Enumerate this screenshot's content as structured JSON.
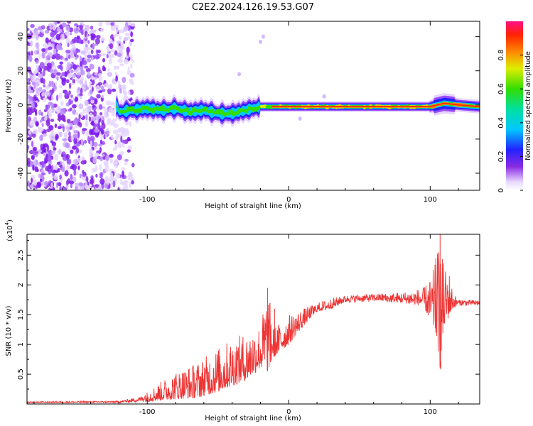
{
  "title": "C2E2.2024.126.19.53.G07",
  "chart_data": [
    {
      "type": "heatmap",
      "panel": "top",
      "xlabel": "Height of straight line (km)",
      "ylabel": "Frequency (Hz)",
      "xlim": [
        -185,
        135
      ],
      "ylim": [
        -50,
        49
      ],
      "xticks": [
        -100,
        0,
        100
      ],
      "yticks": [
        -40,
        -20,
        0,
        20,
        40
      ],
      "colorbar": {
        "label": "Normalized spectral amplitude",
        "range": [
          0,
          1
        ],
        "ticks": [
          0.0,
          0.2,
          0.4,
          0.6,
          0.8
        ]
      },
      "ridge": [
        [
          -120,
          -4
        ],
        [
          -110,
          -3
        ],
        [
          -100,
          -2
        ],
        [
          -90,
          -3
        ],
        [
          -80,
          -2
        ],
        [
          -70,
          -4
        ],
        [
          -60,
          -3
        ],
        [
          -50,
          -5
        ],
        [
          -40,
          -5
        ],
        [
          -30,
          -3
        ],
        [
          -20,
          -1
        ],
        [
          -10,
          -1
        ],
        [
          0,
          -1
        ],
        [
          20,
          -1
        ],
        [
          40,
          -1
        ],
        [
          60,
          -1
        ],
        [
          80,
          -1
        ],
        [
          100,
          -1
        ],
        [
          105,
          0
        ],
        [
          110,
          1
        ],
        [
          120,
          0
        ],
        [
          135,
          -1
        ]
      ]
    },
    {
      "type": "line",
      "panel": "bottom",
      "xlabel": "Height of straight line (km)",
      "ylabel": "SNR (10 * v/v)",
      "scale_label": "(x10",
      "scale_exp": "4",
      "scale_close": ")",
      "xlim": [
        -185,
        135
      ],
      "ylim": [
        0,
        2.85
      ],
      "xticks": [
        -100,
        0,
        100
      ],
      "yticks": [
        0.5,
        1.0,
        1.5,
        2.0,
        2.5
      ],
      "color": "#ee3333",
      "series": [
        {
          "envelope": [
            [
              -185,
              0.02,
              0.04
            ],
            [
              -120,
              0.02,
              0.05
            ],
            [
              -105,
              0.03,
              0.12
            ],
            [
              -95,
              0.05,
              0.3
            ],
            [
              -80,
              0.08,
              0.55
            ],
            [
              -65,
              0.1,
              0.7
            ],
            [
              -50,
              0.2,
              0.95
            ],
            [
              -40,
              0.3,
              1.1
            ],
            [
              -30,
              0.4,
              1.2
            ],
            [
              -20,
              0.6,
              1.35
            ],
            [
              -15,
              0.55,
              1.95
            ],
            [
              -10,
              0.8,
              1.3
            ],
            [
              -5,
              0.9,
              1.4
            ],
            [
              0,
              1.0,
              1.5
            ],
            [
              10,
              1.3,
              1.6
            ],
            [
              20,
              1.55,
              1.7
            ],
            [
              30,
              1.6,
              1.78
            ],
            [
              40,
              1.7,
              1.82
            ],
            [
              60,
              1.72,
              1.85
            ],
            [
              80,
              1.7,
              1.88
            ],
            [
              95,
              1.65,
              1.95
            ],
            [
              100,
              1.4,
              2.1
            ],
            [
              104,
              1.2,
              2.4
            ],
            [
              107,
              0.6,
              2.85
            ],
            [
              110,
              1.3,
              2.3
            ],
            [
              113,
              1.45,
              2.3
            ],
            [
              116,
              1.6,
              1.9
            ],
            [
              120,
              1.65,
              1.75
            ],
            [
              135,
              1.65,
              1.75
            ]
          ]
        }
      ]
    }
  ]
}
